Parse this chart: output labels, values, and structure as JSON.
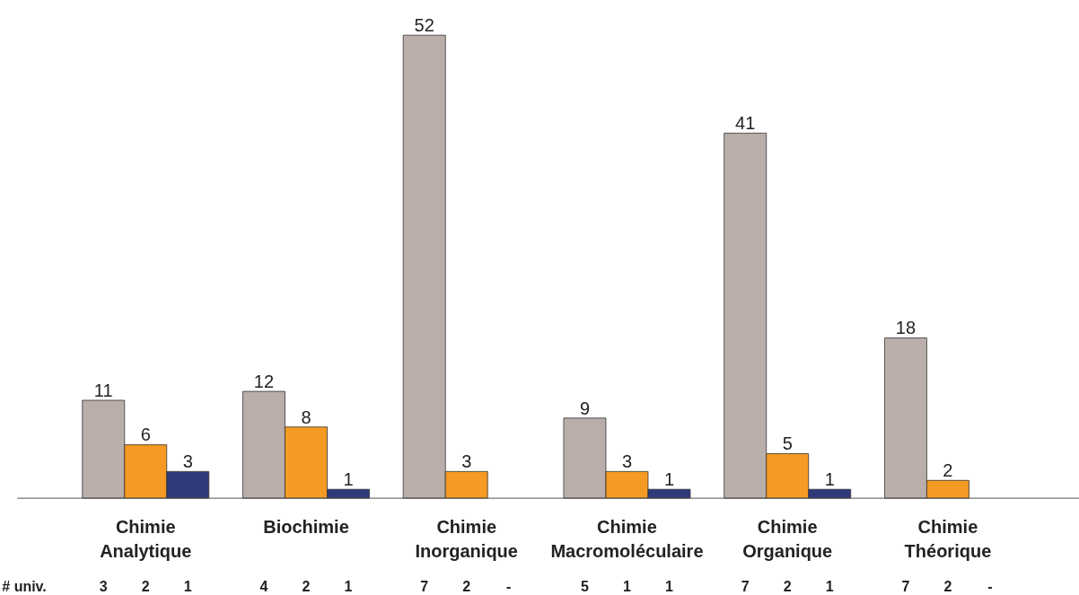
{
  "chart_data": {
    "type": "bar",
    "categories": [
      "Chimie\nAnalytique",
      "Biochimie",
      "Chimie\nInorganique",
      "Chimie\nMacromoléculaire",
      "Chimie\nOrganique",
      "Chimie\nThéorique"
    ],
    "series": [
      {
        "color": "#b9aea9",
        "values": [
          11,
          12,
          52,
          9,
          41,
          18
        ]
      },
      {
        "color": "#f59a23",
        "values": [
          6,
          8,
          3,
          3,
          5,
          2
        ]
      },
      {
        "color": "#2e3a7a",
        "values": [
          3,
          1,
          null,
          1,
          1,
          null
        ]
      }
    ],
    "data_labels": true,
    "grid": false,
    "annotations": [
      "# univ.",
      "3",
      "2",
      "1",
      "4",
      "2",
      "1",
      "7",
      "2",
      "-",
      "5",
      "1",
      "1",
      "7",
      "2",
      "1",
      "7",
      "2",
      "-"
    ]
  }
}
